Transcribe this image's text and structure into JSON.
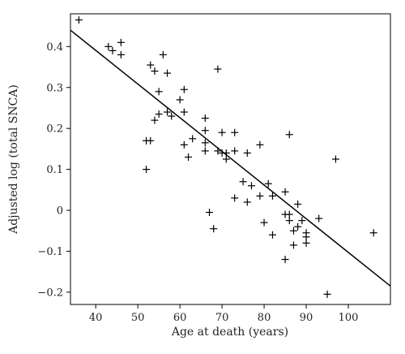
{
  "chart_data": {
    "type": "scatter",
    "xlabel": "Age at death (years)",
    "ylabel": "Adjusted log (total SNCA)",
    "xlim": [
      34,
      110
    ],
    "ylim": [
      -0.23,
      0.48
    ],
    "x_ticks": [
      40,
      50,
      60,
      70,
      80,
      90,
      100
    ],
    "y_ticks": [
      -0.2,
      -0.1,
      0,
      0.1,
      0.2,
      0.3,
      0.4
    ],
    "y_tick_labels": [
      "−0.2",
      "−0.1",
      "0",
      "0.1",
      "0.2",
      "0.3",
      "0.4"
    ],
    "marker": "+",
    "color": "#000000",
    "grid": false,
    "regression_line": {
      "x": [
        34,
        110
      ],
      "y": [
        0.44,
        -0.185
      ]
    },
    "points": [
      {
        "x": 36,
        "y": 0.465
      },
      {
        "x": 43,
        "y": 0.4
      },
      {
        "x": 44,
        "y": 0.39
      },
      {
        "x": 46,
        "y": 0.41
      },
      {
        "x": 46,
        "y": 0.38
      },
      {
        "x": 52,
        "y": 0.17
      },
      {
        "x": 52,
        "y": 0.1
      },
      {
        "x": 53,
        "y": 0.355
      },
      {
        "x": 53,
        "y": 0.17
      },
      {
        "x": 54,
        "y": 0.34
      },
      {
        "x": 54,
        "y": 0.22
      },
      {
        "x": 55,
        "y": 0.29
      },
      {
        "x": 55,
        "y": 0.235
      },
      {
        "x": 56,
        "y": 0.38
      },
      {
        "x": 57,
        "y": 0.335
      },
      {
        "x": 57,
        "y": 0.24
      },
      {
        "x": 58,
        "y": 0.23
      },
      {
        "x": 60,
        "y": 0.27
      },
      {
        "x": 61,
        "y": 0.295
      },
      {
        "x": 61,
        "y": 0.24
      },
      {
        "x": 61,
        "y": 0.16
      },
      {
        "x": 62,
        "y": 0.13
      },
      {
        "x": 63,
        "y": 0.175
      },
      {
        "x": 66,
        "y": 0.225
      },
      {
        "x": 66,
        "y": 0.195
      },
      {
        "x": 66,
        "y": 0.165
      },
      {
        "x": 66,
        "y": 0.145
      },
      {
        "x": 67,
        "y": -0.005
      },
      {
        "x": 68,
        "y": -0.045
      },
      {
        "x": 69,
        "y": 0.345
      },
      {
        "x": 69,
        "y": 0.145
      },
      {
        "x": 70,
        "y": 0.19
      },
      {
        "x": 70,
        "y": 0.14
      },
      {
        "x": 71,
        "y": 0.14
      },
      {
        "x": 71,
        "y": 0.125
      },
      {
        "x": 73,
        "y": 0.19
      },
      {
        "x": 73,
        "y": 0.145
      },
      {
        "x": 73,
        "y": 0.03
      },
      {
        "x": 75,
        "y": 0.07
      },
      {
        "x": 76,
        "y": 0.14
      },
      {
        "x": 76,
        "y": 0.02
      },
      {
        "x": 77,
        "y": 0.06
      },
      {
        "x": 79,
        "y": 0.16
      },
      {
        "x": 79,
        "y": 0.035
      },
      {
        "x": 80,
        "y": -0.03
      },
      {
        "x": 81,
        "y": 0.065
      },
      {
        "x": 82,
        "y": 0.035
      },
      {
        "x": 82,
        "y": -0.06
      },
      {
        "x": 85,
        "y": 0.045
      },
      {
        "x": 85,
        "y": -0.01
      },
      {
        "x": 85,
        "y": -0.12
      },
      {
        "x": 86,
        "y": 0.185
      },
      {
        "x": 86,
        "y": -0.01
      },
      {
        "x": 86,
        "y": -0.025
      },
      {
        "x": 87,
        "y": -0.05
      },
      {
        "x": 87,
        "y": -0.085
      },
      {
        "x": 88,
        "y": 0.015
      },
      {
        "x": 88,
        "y": -0.04
      },
      {
        "x": 89,
        "y": -0.025
      },
      {
        "x": 90,
        "y": -0.055
      },
      {
        "x": 90,
        "y": -0.065
      },
      {
        "x": 90,
        "y": -0.08
      },
      {
        "x": 93,
        "y": -0.02
      },
      {
        "x": 95,
        "y": -0.205
      },
      {
        "x": 97,
        "y": 0.125
      },
      {
        "x": 106,
        "y": -0.055
      }
    ]
  }
}
